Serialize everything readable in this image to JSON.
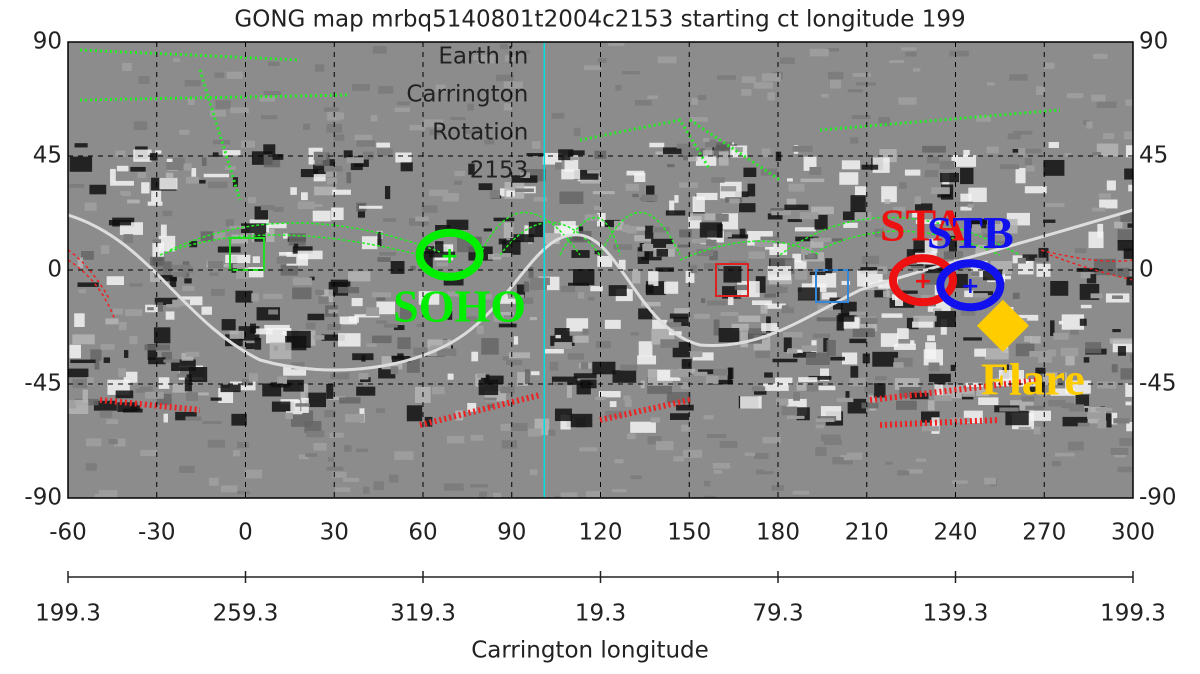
{
  "chart_data": {
    "type": "map",
    "title": "GONG map mrbq5140801t2004c2153 starting ct longitude 199",
    "xlim": [
      -60,
      300
    ],
    "xticks": [
      -60,
      -30,
      0,
      30,
      60,
      90,
      120,
      150,
      180,
      210,
      240,
      270,
      300
    ],
    "ylim": [
      -90,
      90
    ],
    "yticks": [
      -90,
      -45,
      0,
      45,
      90
    ],
    "x2ticks": [
      {
        "value": -60,
        "label": "199.3"
      },
      {
        "value": 0,
        "label": "259.3"
      },
      {
        "value": 60,
        "label": "319.3"
      },
      {
        "value": 120,
        "label": "19.3"
      },
      {
        "value": 180,
        "label": "79.3"
      },
      {
        "value": 240,
        "label": "139.3"
      },
      {
        "value": 300,
        "label": "199.3"
      }
    ],
    "xlabel": "Carrington longitude",
    "grid": true,
    "earth_line": {
      "x": 101,
      "color": "#00e0e0",
      "label": [
        "Earth in",
        "Carrington",
        "Rotation",
        "2153"
      ]
    },
    "markers": [
      {
        "name": "SOHO",
        "color": "#00ee00",
        "x": 69,
        "y": 6
      },
      {
        "name": "STA",
        "color": "#ee1111",
        "x": 229,
        "y": -4
      },
      {
        "name": "STB",
        "color": "#1111ee",
        "x": 245,
        "y": -6
      },
      {
        "name": "Flare",
        "color": "#ffcc00",
        "x": 256,
        "y": -22
      }
    ]
  }
}
